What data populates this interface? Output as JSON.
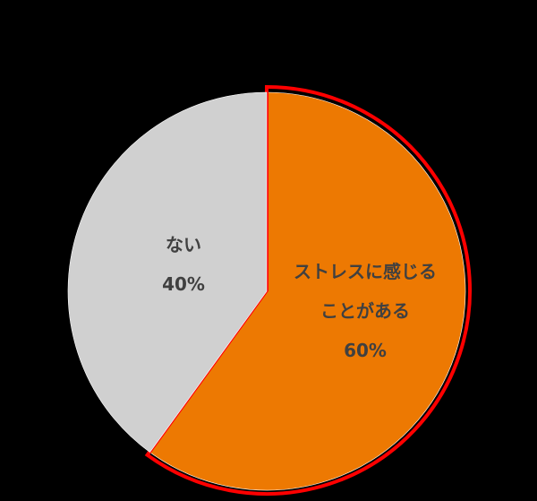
{
  "chart_data": {
    "type": "pie",
    "start_angle": "top, clockwise",
    "slices": [
      {
        "label_lines": [
          "ストレスに感じる",
          "ことがある"
        ],
        "value": 60,
        "value_label": "60%",
        "color": "#ED7902",
        "highlight_outline": "#FF0000"
      },
      {
        "label_lines": [
          "ない"
        ],
        "value": 40,
        "value_label": "40%",
        "color": "#D0D0D0"
      }
    ],
    "background": "#000000"
  }
}
